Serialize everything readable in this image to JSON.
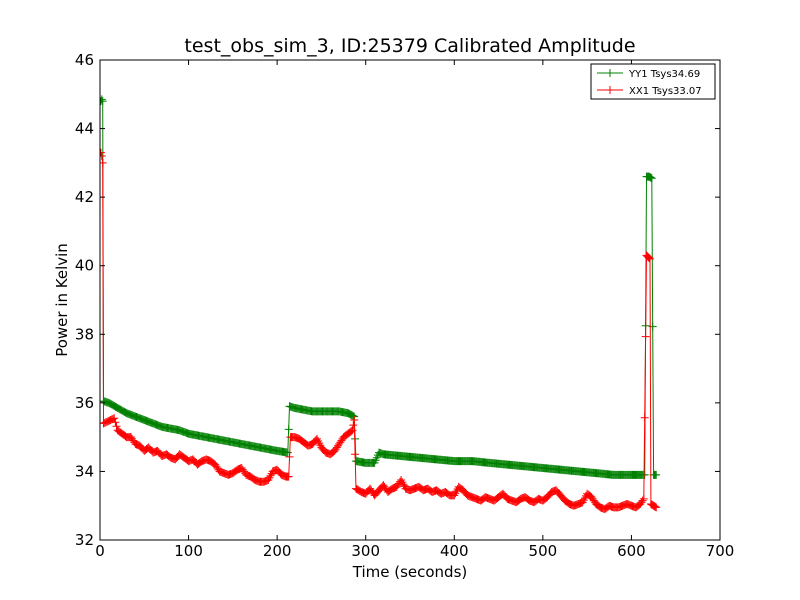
{
  "chart_data": {
    "type": "line",
    "title": "test_obs_sim_3, ID:25379 Calibrated Amplitude",
    "xlabel": "Time (seconds)",
    "ylabel": "Power in Kelvin",
    "xlim": [
      0,
      700
    ],
    "ylim": [
      32,
      46
    ],
    "xticks": [
      0,
      100,
      200,
      300,
      400,
      500,
      600,
      700
    ],
    "yticks": [
      32,
      34,
      36,
      38,
      40,
      42,
      44,
      46
    ],
    "grid": false,
    "legend": "top-right",
    "colors": {
      "YY1": "#008000",
      "XX1": "#ff0000"
    },
    "series": [
      {
        "name": "YY1 Tsys34.69",
        "color": "#008000",
        "marker": "+",
        "points": [
          [
            1,
            44.8
          ],
          [
            2,
            44.85
          ],
          [
            3,
            44.8
          ],
          [
            4,
            36.05
          ],
          [
            10,
            36.0
          ],
          [
            20,
            35.85
          ],
          [
            30,
            35.7
          ],
          [
            40,
            35.6
          ],
          [
            50,
            35.5
          ],
          [
            60,
            35.4
          ],
          [
            70,
            35.3
          ],
          [
            80,
            35.25
          ],
          [
            90,
            35.2
          ],
          [
            100,
            35.1
          ],
          [
            110,
            35.05
          ],
          [
            120,
            35.0
          ],
          [
            130,
            34.95
          ],
          [
            140,
            34.9
          ],
          [
            150,
            34.85
          ],
          [
            160,
            34.8
          ],
          [
            170,
            34.75
          ],
          [
            180,
            34.7
          ],
          [
            190,
            34.65
          ],
          [
            200,
            34.6
          ],
          [
            212,
            34.55
          ],
          [
            214,
            35.9
          ],
          [
            220,
            35.85
          ],
          [
            230,
            35.8
          ],
          [
            240,
            35.75
          ],
          [
            250,
            35.75
          ],
          [
            260,
            35.75
          ],
          [
            270,
            35.75
          ],
          [
            280,
            35.7
          ],
          [
            287,
            35.6
          ],
          [
            289,
            34.3
          ],
          [
            300,
            34.25
          ],
          [
            310,
            34.25
          ],
          [
            315,
            34.55
          ],
          [
            320,
            34.5
          ],
          [
            340,
            34.45
          ],
          [
            360,
            34.4
          ],
          [
            380,
            34.35
          ],
          [
            400,
            34.3
          ],
          [
            420,
            34.3
          ],
          [
            440,
            34.25
          ],
          [
            460,
            34.2
          ],
          [
            480,
            34.15
          ],
          [
            500,
            34.1
          ],
          [
            520,
            34.05
          ],
          [
            540,
            34.0
          ],
          [
            560,
            33.95
          ],
          [
            580,
            33.9
          ],
          [
            600,
            33.9
          ],
          [
            615,
            33.9
          ],
          [
            617,
            42.6
          ],
          [
            620,
            42.6
          ],
          [
            623,
            42.55
          ],
          [
            625,
            33.9
          ],
          [
            628,
            33.9
          ]
        ]
      },
      {
        "name": "XX1 Tsys33.07",
        "color": "#ff0000",
        "marker": "+",
        "points": [
          [
            1,
            43.3
          ],
          [
            2,
            43.2
          ],
          [
            3,
            43.0
          ],
          [
            4,
            35.4
          ],
          [
            8,
            35.45
          ],
          [
            12,
            35.5
          ],
          [
            16,
            35.55
          ],
          [
            20,
            35.2
          ],
          [
            25,
            35.1
          ],
          [
            30,
            35.0
          ],
          [
            35,
            35.0
          ],
          [
            40,
            34.8
          ],
          [
            45,
            34.75
          ],
          [
            50,
            34.6
          ],
          [
            55,
            34.7
          ],
          [
            60,
            34.55
          ],
          [
            65,
            34.6
          ],
          [
            70,
            34.45
          ],
          [
            75,
            34.5
          ],
          [
            80,
            34.4
          ],
          [
            85,
            34.35
          ],
          [
            90,
            34.5
          ],
          [
            95,
            34.4
          ],
          [
            100,
            34.3
          ],
          [
            105,
            34.35
          ],
          [
            110,
            34.2
          ],
          [
            115,
            34.3
          ],
          [
            120,
            34.35
          ],
          [
            125,
            34.3
          ],
          [
            130,
            34.2
          ],
          [
            135,
            34.0
          ],
          [
            140,
            33.95
          ],
          [
            145,
            33.9
          ],
          [
            150,
            33.95
          ],
          [
            155,
            34.05
          ],
          [
            160,
            34.1
          ],
          [
            165,
            33.9
          ],
          [
            170,
            33.85
          ],
          [
            175,
            33.75
          ],
          [
            180,
            33.7
          ],
          [
            185,
            33.7
          ],
          [
            190,
            33.75
          ],
          [
            195,
            34.0
          ],
          [
            200,
            34.05
          ],
          [
            205,
            33.9
          ],
          [
            210,
            33.85
          ],
          [
            213,
            33.85
          ],
          [
            215,
            35.0
          ],
          [
            220,
            35.0
          ],
          [
            225,
            34.95
          ],
          [
            230,
            34.85
          ],
          [
            235,
            34.75
          ],
          [
            240,
            34.8
          ],
          [
            245,
            34.95
          ],
          [
            250,
            34.7
          ],
          [
            255,
            34.55
          ],
          [
            260,
            34.5
          ],
          [
            265,
            34.6
          ],
          [
            270,
            34.8
          ],
          [
            275,
            35.0
          ],
          [
            280,
            35.1
          ],
          [
            285,
            35.2
          ],
          [
            287,
            35.5
          ],
          [
            289,
            33.5
          ],
          [
            295,
            33.4
          ],
          [
            300,
            33.35
          ],
          [
            305,
            33.5
          ],
          [
            310,
            33.3
          ],
          [
            315,
            33.45
          ],
          [
            320,
            33.6
          ],
          [
            325,
            33.4
          ],
          [
            330,
            33.5
          ],
          [
            335,
            33.55
          ],
          [
            340,
            33.75
          ],
          [
            345,
            33.5
          ],
          [
            350,
            33.45
          ],
          [
            355,
            33.5
          ],
          [
            360,
            33.55
          ],
          [
            365,
            33.45
          ],
          [
            370,
            33.5
          ],
          [
            375,
            33.4
          ],
          [
            380,
            33.45
          ],
          [
            385,
            33.35
          ],
          [
            390,
            33.4
          ],
          [
            395,
            33.3
          ],
          [
            400,
            33.3
          ],
          [
            405,
            33.55
          ],
          [
            410,
            33.45
          ],
          [
            415,
            33.3
          ],
          [
            420,
            33.25
          ],
          [
            425,
            33.2
          ],
          [
            430,
            33.15
          ],
          [
            435,
            33.25
          ],
          [
            440,
            33.2
          ],
          [
            445,
            33.15
          ],
          [
            450,
            33.25
          ],
          [
            455,
            33.35
          ],
          [
            460,
            33.2
          ],
          [
            465,
            33.15
          ],
          [
            470,
            33.1
          ],
          [
            475,
            33.2
          ],
          [
            480,
            33.25
          ],
          [
            485,
            33.15
          ],
          [
            490,
            33.1
          ],
          [
            495,
            33.2
          ],
          [
            500,
            33.15
          ],
          [
            505,
            33.25
          ],
          [
            510,
            33.4
          ],
          [
            515,
            33.45
          ],
          [
            520,
            33.3
          ],
          [
            525,
            33.15
          ],
          [
            530,
            33.05
          ],
          [
            535,
            33.0
          ],
          [
            540,
            33.05
          ],
          [
            545,
            33.1
          ],
          [
            550,
            33.35
          ],
          [
            555,
            33.25
          ],
          [
            560,
            33.05
          ],
          [
            565,
            32.95
          ],
          [
            570,
            32.9
          ],
          [
            575,
            33.0
          ],
          [
            580,
            32.95
          ],
          [
            585,
            32.95
          ],
          [
            590,
            33.0
          ],
          [
            595,
            33.05
          ],
          [
            600,
            33.0
          ],
          [
            605,
            32.95
          ],
          [
            610,
            33.05
          ],
          [
            614,
            33.2
          ],
          [
            617,
            40.3
          ],
          [
            619,
            40.25
          ],
          [
            621,
            40.2
          ],
          [
            622,
            33.05
          ],
          [
            625,
            33.0
          ],
          [
            628,
            32.95
          ]
        ]
      }
    ]
  }
}
